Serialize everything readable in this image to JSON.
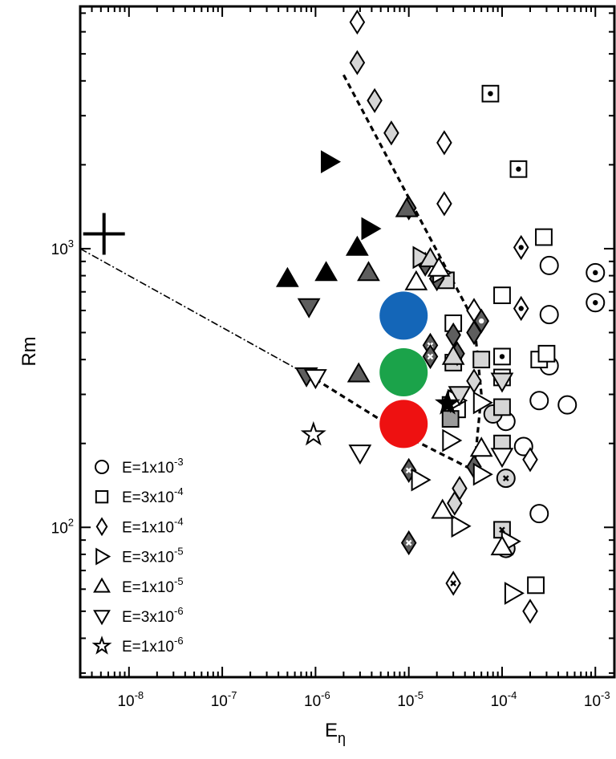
{
  "chart_data": {
    "type": "scatter",
    "xscale": "log",
    "yscale": "log",
    "xlim": [
      3e-09,
      0.0016
    ],
    "ylim": [
      29,
      7400
    ],
    "xlabel": "E",
    "xlabel_sub": "η",
    "ylabel": "Rm",
    "grid": false,
    "legend_position": "bottom-left",
    "x_ticks": [
      {
        "value": 1e-08,
        "base": "10",
        "exp": "-8"
      },
      {
        "value": 1e-07,
        "base": "10",
        "exp": "-7"
      },
      {
        "value": 1e-06,
        "base": "10",
        "exp": "-6"
      },
      {
        "value": 1e-05,
        "base": "10",
        "exp": "-5"
      },
      {
        "value": 0.0001,
        "base": "10",
        "exp": "-4"
      },
      {
        "value": 0.001,
        "base": "10",
        "exp": "-3"
      }
    ],
    "y_ticks": [
      {
        "value": 100,
        "base": "10",
        "exp": "2"
      },
      {
        "value": 1000,
        "base": "10",
        "exp": "3"
      }
    ],
    "legend": [
      {
        "marker": "circle",
        "label": "E=1x10",
        "exp": "-3"
      },
      {
        "marker": "square",
        "label": "E=3x10",
        "exp": "-4"
      },
      {
        "marker": "diamond",
        "label": "E=1x10",
        "exp": "-4"
      },
      {
        "marker": "triangle-right",
        "label": "E=3x10",
        "exp": "-5"
      },
      {
        "marker": "triangle-up",
        "label": "E=1x10",
        "exp": "-5"
      },
      {
        "marker": "triangle-down",
        "label": "E=3x10",
        "exp": "-6"
      },
      {
        "marker": "star",
        "label": "E=1x10",
        "exp": "-6"
      }
    ],
    "fill_colors": {
      "open": "#ffffff",
      "light": "#d6d6d6",
      "mid": "#9a9a9a",
      "dark": "#5e5e5e",
      "black": "#000000"
    },
    "big_markers": [
      {
        "x": 8.8e-06,
        "y": 575,
        "color": "#1466b8"
      },
      {
        "x": 8.8e-06,
        "y": 360,
        "color": "#1ba34a"
      },
      {
        "x": 8.8e-06,
        "y": 235,
        "color": "#ee1111"
      }
    ],
    "cross_marker": {
      "x": 5.4e-09,
      "y": 1130
    },
    "lines": [
      {
        "style": "dashdot",
        "points": [
          [
            3e-09,
            1000
          ],
          [
            1e-06,
            340
          ]
        ]
      },
      {
        "style": "dashed",
        "points": [
          [
            1e-06,
            340
          ],
          [
            1e-05,
            210
          ],
          [
            5e-05,
            160
          ]
        ]
      },
      {
        "style": "dashed",
        "points": [
          [
            2e-06,
            4200
          ],
          [
            5e-05,
            550
          ],
          [
            6e-05,
            300
          ],
          [
            5e-05,
            160
          ]
        ]
      }
    ],
    "series": [
      {
        "marker": "circle",
        "points": [
          {
            "x": 0.00032,
            "y": 870,
            "fill": "open"
          },
          {
            "x": 0.001,
            "y": 820,
            "fill": "open",
            "inner": "dot"
          },
          {
            "x": 0.001,
            "y": 640,
            "fill": "open",
            "inner": "dot"
          },
          {
            "x": 0.00032,
            "y": 580,
            "fill": "open"
          },
          {
            "x": 0.00032,
            "y": 380,
            "fill": "open"
          },
          {
            "x": 0.00025,
            "y": 285,
            "fill": "open"
          },
          {
            "x": 0.0005,
            "y": 275,
            "fill": "open"
          },
          {
            "x": 0.00011,
            "y": 240,
            "fill": "open"
          },
          {
            "x": 8e-05,
            "y": 255,
            "fill": "light"
          },
          {
            "x": 0.00017,
            "y": 195,
            "fill": "open"
          },
          {
            "x": 0.00011,
            "y": 150,
            "fill": "light",
            "inner": "cross"
          },
          {
            "x": 0.00025,
            "y": 112,
            "fill": "open"
          },
          {
            "x": 0.00011,
            "y": 84,
            "fill": "light",
            "inner": "cross"
          }
        ]
      },
      {
        "marker": "square",
        "points": [
          {
            "x": 7.5e-05,
            "y": 3600,
            "fill": "open",
            "inner": "dot"
          },
          {
            "x": 0.00015,
            "y": 1930,
            "fill": "open",
            "inner": "dot"
          },
          {
            "x": 0.00028,
            "y": 1100,
            "fill": "open"
          },
          {
            "x": 0.0001,
            "y": 680,
            "fill": "open"
          },
          {
            "x": 2.5e-05,
            "y": 770,
            "fill": "light"
          },
          {
            "x": 3e-05,
            "y": 540,
            "fill": "open"
          },
          {
            "x": 0.0001,
            "y": 410,
            "fill": "open",
            "inner": "dot"
          },
          {
            "x": 0.00025,
            "y": 400,
            "fill": "open"
          },
          {
            "x": 0.0003,
            "y": 420,
            "fill": "open"
          },
          {
            "x": 6e-05,
            "y": 400,
            "fill": "light"
          },
          {
            "x": 3e-05,
            "y": 390,
            "fill": "light"
          },
          {
            "x": 0.0001,
            "y": 345,
            "fill": "open"
          },
          {
            "x": 2.8e-05,
            "y": 275,
            "fill": "mid"
          },
          {
            "x": 3.3e-05,
            "y": 265,
            "fill": "open"
          },
          {
            "x": 2.8e-05,
            "y": 245,
            "fill": "mid"
          },
          {
            "x": 0.0001,
            "y": 270,
            "fill": "light"
          },
          {
            "x": 0.0001,
            "y": 200,
            "fill": "light"
          },
          {
            "x": 0.0001,
            "y": 98,
            "fill": "light",
            "inner": "cross"
          },
          {
            "x": 0.00023,
            "y": 62,
            "fill": "open"
          }
        ]
      },
      {
        "marker": "diamond",
        "points": [
          {
            "x": 2.8e-06,
            "y": 6500,
            "fill": "open"
          },
          {
            "x": 2.8e-06,
            "y": 4650,
            "fill": "light"
          },
          {
            "x": 4.3e-06,
            "y": 3400,
            "fill": "light"
          },
          {
            "x": 6.5e-06,
            "y": 2600,
            "fill": "light"
          },
          {
            "x": 2.4e-05,
            "y": 2400,
            "fill": "open"
          },
          {
            "x": 1e-05,
            "y": 1400,
            "fill": "dark"
          },
          {
            "x": 2.4e-05,
            "y": 1450,
            "fill": "open"
          },
          {
            "x": 0.00016,
            "y": 1010,
            "fill": "open",
            "inner": "dot"
          },
          {
            "x": 1.5e-05,
            "y": 880,
            "fill": "dark"
          },
          {
            "x": 2e-05,
            "y": 780,
            "fill": "dark"
          },
          {
            "x": 5e-05,
            "y": 600,
            "fill": "open"
          },
          {
            "x": 0.00016,
            "y": 610,
            "fill": "open",
            "inner": "dot"
          },
          {
            "x": 6e-05,
            "y": 550,
            "fill": "dark",
            "inner": "dot"
          },
          {
            "x": 3e-05,
            "y": 490,
            "fill": "dark"
          },
          {
            "x": 5e-05,
            "y": 500,
            "fill": "dark"
          },
          {
            "x": 1.7e-05,
            "y": 450,
            "fill": "dark",
            "inner": "cross"
          },
          {
            "x": 1.7e-05,
            "y": 410,
            "fill": "dark",
            "inner": "cross"
          },
          {
            "x": 3.3e-05,
            "y": 420,
            "fill": "dark"
          },
          {
            "x": 5e-05,
            "y": 335,
            "fill": "light"
          },
          {
            "x": 2.8e-05,
            "y": 285,
            "fill": "black"
          },
          {
            "x": 0.0002,
            "y": 175,
            "fill": "open"
          },
          {
            "x": 5e-05,
            "y": 165,
            "fill": "dark"
          },
          {
            "x": 1e-05,
            "y": 160,
            "fill": "dark",
            "inner": "cross"
          },
          {
            "x": 3.5e-05,
            "y": 138,
            "fill": "light"
          },
          {
            "x": 3.1e-05,
            "y": 122,
            "fill": "light"
          },
          {
            "x": 1e-05,
            "y": 88,
            "fill": "dark",
            "inner": "cross"
          },
          {
            "x": 3e-05,
            "y": 63,
            "fill": "open",
            "inner": "cross"
          },
          {
            "x": 0.0002,
            "y": 50,
            "fill": "open"
          }
        ]
      },
      {
        "marker": "triangle-right",
        "points": [
          {
            "x": 1.4e-06,
            "y": 2050,
            "fill": "black"
          },
          {
            "x": 3.8e-06,
            "y": 1180,
            "fill": "black"
          },
          {
            "x": 1.35e-05,
            "y": 930,
            "fill": "light"
          },
          {
            "x": 2.2e-05,
            "y": 820,
            "fill": "open"
          },
          {
            "x": 6e-05,
            "y": 280,
            "fill": "open"
          },
          {
            "x": 3.2e-05,
            "y": 285,
            "fill": "open"
          },
          {
            "x": 2.8e-05,
            "y": 205,
            "fill": "open"
          },
          {
            "x": 1.3e-05,
            "y": 148,
            "fill": "open"
          },
          {
            "x": 6e-05,
            "y": 155,
            "fill": "open"
          },
          {
            "x": 3.5e-05,
            "y": 101,
            "fill": "open"
          },
          {
            "x": 0.00012,
            "y": 89,
            "fill": "open"
          },
          {
            "x": 0.00013,
            "y": 58,
            "fill": "open"
          }
        ]
      },
      {
        "marker": "triangle-up",
        "points": [
          {
            "x": 5e-07,
            "y": 780,
            "fill": "black"
          },
          {
            "x": 1.3e-06,
            "y": 820,
            "fill": "black"
          },
          {
            "x": 2.8e-06,
            "y": 1010,
            "fill": "black"
          },
          {
            "x": 3.7e-06,
            "y": 820,
            "fill": "dark"
          },
          {
            "x": 9.5e-06,
            "y": 1390,
            "fill": "dark"
          },
          {
            "x": 1.7e-05,
            "y": 920,
            "fill": "light"
          },
          {
            "x": 2.1e-05,
            "y": 850,
            "fill": "open"
          },
          {
            "x": 1.2e-05,
            "y": 760,
            "fill": "open"
          },
          {
            "x": 3e-05,
            "y": 410,
            "fill": "light"
          },
          {
            "x": 2.9e-06,
            "y": 355,
            "fill": "dark"
          },
          {
            "x": 6e-05,
            "y": 192,
            "fill": "open"
          },
          {
            "x": 2.3e-05,
            "y": 115,
            "fill": "open"
          },
          {
            "x": 0.0001,
            "y": 85,
            "fill": "open"
          }
        ]
      },
      {
        "marker": "triangle-down",
        "points": [
          {
            "x": 8.5e-07,
            "y": 620,
            "fill": "dark"
          },
          {
            "x": 8e-07,
            "y": 350,
            "fill": "dark"
          },
          {
            "x": 1e-06,
            "y": 345,
            "fill": "open"
          },
          {
            "x": 3e-06,
            "y": 185,
            "fill": "open"
          },
          {
            "x": 0.0001,
            "y": 335,
            "fill": "light"
          },
          {
            "x": 3.5e-05,
            "y": 300,
            "fill": "light"
          },
          {
            "x": 0.0001,
            "y": 180,
            "fill": "open"
          }
        ]
      },
      {
        "marker": "star",
        "points": [
          {
            "x": 9.5e-07,
            "y": 215,
            "fill": "open"
          },
          {
            "x": 2.6e-05,
            "y": 278,
            "fill": "black"
          }
        ]
      }
    ]
  }
}
